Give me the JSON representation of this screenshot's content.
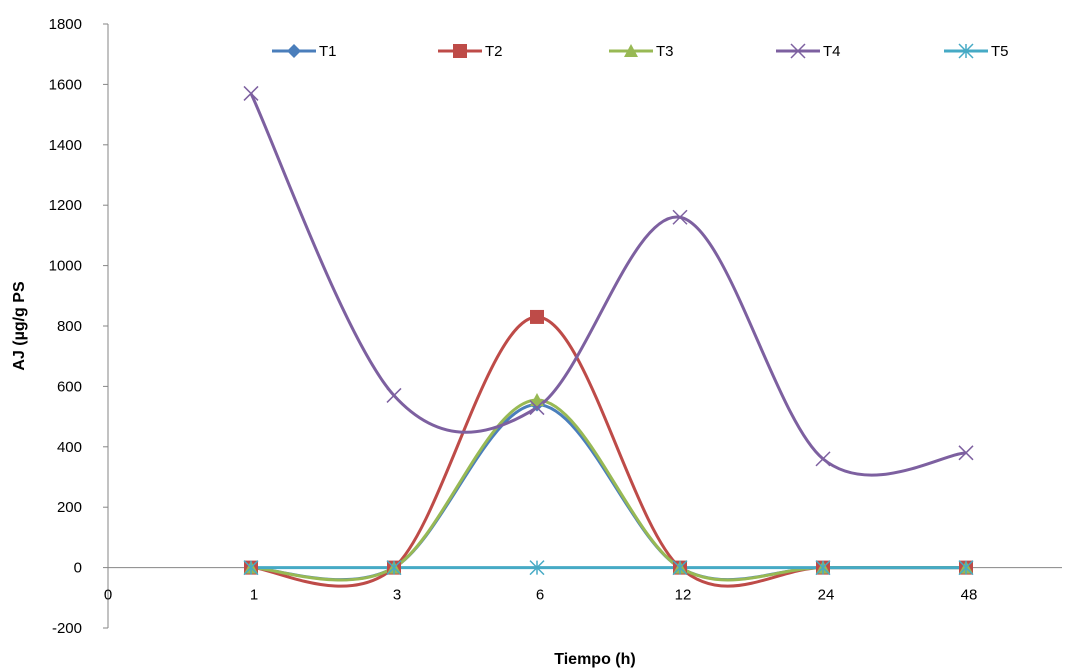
{
  "chart_data": {
    "type": "line",
    "title": "",
    "xlabel": "Tiempo (h)",
    "ylabel": "AJ (µg/g PS",
    "x_tick_labels": [
      "0",
      "1",
      "3",
      "6",
      "12",
      "24",
      "48"
    ],
    "categories": [
      "1",
      "3",
      "6",
      "12",
      "24",
      "48"
    ],
    "ylim": [
      -200,
      1800
    ],
    "y_ticks": [
      -200,
      0,
      200,
      400,
      600,
      800,
      1000,
      1200,
      1400,
      1600,
      1800
    ],
    "y_tick_labels": [
      "-200",
      "0",
      "200",
      "400",
      "600",
      "800",
      "1000",
      "1200",
      "1400",
      "1600",
      "1800"
    ],
    "smoothed": true,
    "grid": false,
    "legend_position": "top",
    "series": [
      {
        "name": "T1",
        "color": "#4a7ebb",
        "marker": "diamond",
        "values": [
          0,
          0,
          540,
          0,
          0,
          0
        ]
      },
      {
        "name": "T2",
        "color": "#be4b48",
        "marker": "square",
        "values": [
          0,
          0,
          830,
          0,
          0,
          0
        ]
      },
      {
        "name": "T3",
        "color": "#98b954",
        "marker": "triangle",
        "values": [
          0,
          0,
          555,
          0,
          0,
          0
        ]
      },
      {
        "name": "T4",
        "color": "#7d60a0",
        "marker": "x",
        "values": [
          1570,
          570,
          530,
          1160,
          360,
          380
        ]
      },
      {
        "name": "T5",
        "color": "#46aac5",
        "marker": "star",
        "values": [
          0,
          0,
          0,
          0,
          0,
          0
        ]
      }
    ]
  }
}
